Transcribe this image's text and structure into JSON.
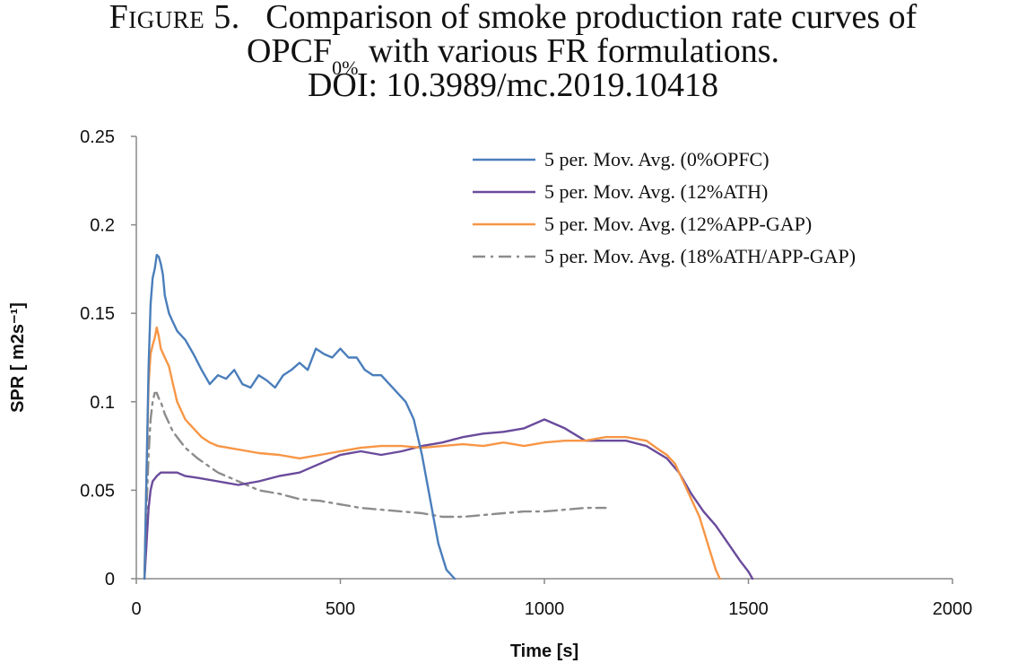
{
  "caption": {
    "figure_label": "Figure 5.",
    "title_part1": "Comparison of smoke production rate curves of",
    "title_part2_main": "OPCF",
    "title_part2_sub": "0%",
    "title_part2_rest": " with various FR formulations.",
    "doi": "DOI: 10.3989/mc.2019.10418"
  },
  "chart_data": {
    "type": "line",
    "title": "",
    "xlabel": "Time [s]",
    "ylabel": "SPR [ m2s⁻¹]",
    "xlim": [
      0,
      2000
    ],
    "ylim": [
      0,
      0.25
    ],
    "x_ticks": [
      0,
      500,
      1000,
      1500,
      2000
    ],
    "y_ticks": [
      0,
      0.05,
      0.1,
      0.15,
      0.2,
      0.25
    ],
    "x_tick_labels": [
      "0",
      "500",
      "1000",
      "1500",
      "2000"
    ],
    "y_tick_labels": [
      "0",
      "0.05",
      "0.1",
      "0.15",
      "0.2",
      "0.25"
    ],
    "grid": false,
    "legend_position": "top-right",
    "series": [
      {
        "name": "5 per. Mov. Avg. (0%OPFC)",
        "color": "#4a7ebb",
        "style": "solid",
        "x": [
          20,
          25,
          30,
          35,
          40,
          45,
          50,
          55,
          60,
          65,
          70,
          80,
          90,
          100,
          120,
          140,
          160,
          180,
          200,
          220,
          240,
          260,
          280,
          300,
          320,
          340,
          360,
          380,
          400,
          420,
          440,
          460,
          480,
          500,
          520,
          540,
          560,
          580,
          600,
          620,
          640,
          660,
          680,
          700,
          720,
          740,
          760,
          780
        ],
        "y": [
          0.0,
          0.06,
          0.12,
          0.155,
          0.17,
          0.175,
          0.183,
          0.182,
          0.178,
          0.172,
          0.16,
          0.15,
          0.145,
          0.14,
          0.135,
          0.127,
          0.118,
          0.11,
          0.115,
          0.113,
          0.118,
          0.11,
          0.108,
          0.115,
          0.112,
          0.108,
          0.115,
          0.118,
          0.122,
          0.118,
          0.13,
          0.127,
          0.125,
          0.13,
          0.125,
          0.125,
          0.118,
          0.115,
          0.115,
          0.11,
          0.105,
          0.1,
          0.09,
          0.07,
          0.045,
          0.02,
          0.005,
          0.0
        ]
      },
      {
        "name": "5 per. Mov. Avg. (12%ATH)",
        "color": "#6a4b9c",
        "style": "solid",
        "x": [
          20,
          25,
          30,
          35,
          40,
          50,
          60,
          80,
          100,
          120,
          150,
          200,
          250,
          300,
          350,
          400,
          450,
          500,
          550,
          600,
          650,
          700,
          750,
          800,
          850,
          900,
          950,
          1000,
          1050,
          1100,
          1150,
          1200,
          1250,
          1300,
          1330,
          1360,
          1390,
          1420,
          1450,
          1480,
          1500,
          1510
        ],
        "y": [
          0.0,
          0.02,
          0.04,
          0.05,
          0.055,
          0.058,
          0.06,
          0.06,
          0.06,
          0.058,
          0.057,
          0.055,
          0.053,
          0.055,
          0.058,
          0.06,
          0.065,
          0.07,
          0.072,
          0.07,
          0.072,
          0.075,
          0.077,
          0.08,
          0.082,
          0.083,
          0.085,
          0.09,
          0.085,
          0.078,
          0.078,
          0.078,
          0.075,
          0.068,
          0.06,
          0.048,
          0.038,
          0.03,
          0.02,
          0.01,
          0.004,
          0.0
        ]
      },
      {
        "name": "5 per. Mov. Avg. (12%APP-GAP)",
        "color": "#f79646",
        "style": "solid",
        "x": [
          20,
          25,
          30,
          35,
          40,
          45,
          50,
          55,
          60,
          70,
          80,
          90,
          100,
          120,
          140,
          160,
          180,
          200,
          250,
          300,
          350,
          400,
          450,
          500,
          550,
          600,
          650,
          700,
          750,
          800,
          850,
          900,
          950,
          1000,
          1050,
          1100,
          1150,
          1200,
          1250,
          1280,
          1300,
          1320,
          1340,
          1360,
          1380,
          1400,
          1420,
          1430
        ],
        "y": [
          0.0,
          0.06,
          0.11,
          0.127,
          0.132,
          0.136,
          0.142,
          0.137,
          0.13,
          0.125,
          0.12,
          0.11,
          0.1,
          0.09,
          0.085,
          0.08,
          0.077,
          0.075,
          0.073,
          0.071,
          0.07,
          0.068,
          0.07,
          0.072,
          0.074,
          0.075,
          0.075,
          0.074,
          0.075,
          0.076,
          0.075,
          0.077,
          0.075,
          0.077,
          0.078,
          0.078,
          0.08,
          0.08,
          0.078,
          0.073,
          0.07,
          0.065,
          0.055,
          0.045,
          0.035,
          0.02,
          0.005,
          0.0
        ]
      },
      {
        "name": "5 per. Mov. Avg. (18%ATH/APP-GAP)",
        "color": "#8c8c8c",
        "style": "dashdot",
        "x": [
          20,
          25,
          30,
          35,
          40,
          45,
          50,
          55,
          60,
          70,
          80,
          90,
          100,
          120,
          150,
          200,
          250,
          300,
          350,
          400,
          450,
          500,
          550,
          600,
          650,
          700,
          750,
          800,
          850,
          900,
          950,
          1000,
          1050,
          1100,
          1150
        ],
        "y": [
          0.0,
          0.04,
          0.07,
          0.09,
          0.1,
          0.105,
          0.105,
          0.102,
          0.1,
          0.093,
          0.088,
          0.083,
          0.08,
          0.074,
          0.068,
          0.06,
          0.055,
          0.05,
          0.048,
          0.045,
          0.044,
          0.042,
          0.04,
          0.039,
          0.038,
          0.037,
          0.035,
          0.035,
          0.036,
          0.037,
          0.038,
          0.038,
          0.039,
          0.04,
          0.04
        ]
      }
    ]
  }
}
